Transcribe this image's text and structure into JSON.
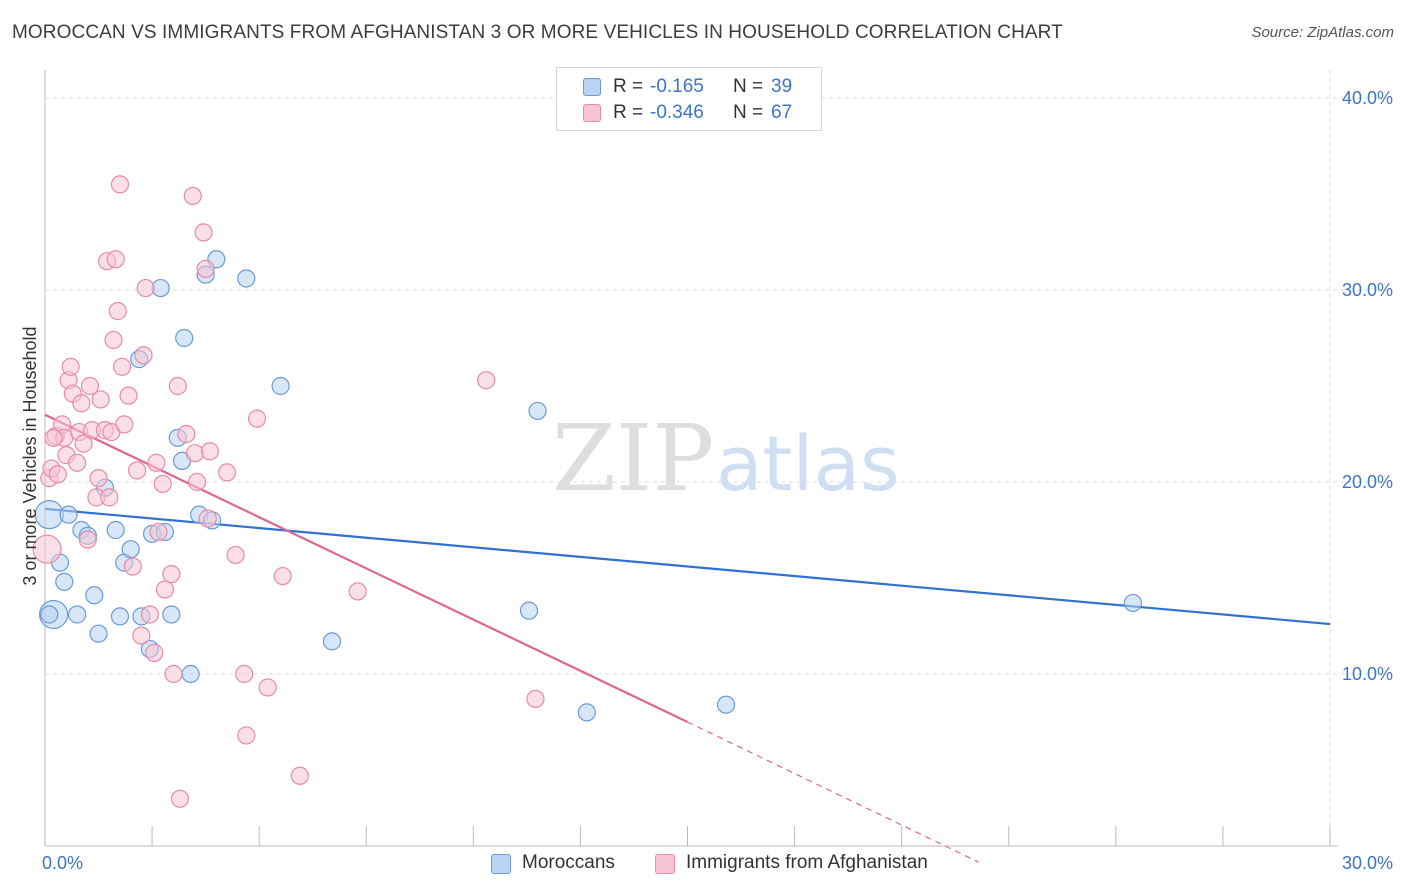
{
  "header": {
    "title": "MOROCCAN VS IMMIGRANTS FROM AFGHANISTAN 3 OR MORE VEHICLES IN HOUSEHOLD CORRELATION CHART",
    "source": "Source: ZipAtlas.com"
  },
  "watermark": {
    "zip": "ZIP",
    "atlas": "atlas"
  },
  "legend": {
    "moroccans": {
      "r_label": "R =",
      "r_value": "-0.165",
      "n_label": "N =",
      "n_value": "39"
    },
    "afghanistan": {
      "r_label": "R =",
      "r_value": "-0.346",
      "n_label": "N =",
      "n_value": "67"
    }
  },
  "bottom_legend": {
    "moroccans": "Moroccans",
    "afghanistan": "Immigrants from Afghanistan"
  },
  "colors": {
    "blue_fill": "#b8d3f3",
    "blue_stroke": "#6b9ad8",
    "blue_line": "#2f72d1",
    "pink_fill": "#f7c4d3",
    "pink_stroke": "#e88aa9",
    "pink_line": "#e0678f",
    "tick_text": "#3d74c9",
    "grid": "#dcdcdc"
  },
  "chart_data": {
    "type": "scatter",
    "title": "MOROCCAN VS IMMIGRANTS FROM AFGHANISTAN 3 OR MORE VEHICLES IN HOUSEHOLD CORRELATION CHART",
    "xlabel": "",
    "ylabel": "3 or more Vehicles in Household",
    "xlim": [
      0,
      30
    ],
    "ylim": [
      0,
      40
    ],
    "x_tick_labels": [
      {
        "value": 0,
        "label": "0.0%"
      },
      {
        "value": 30,
        "label": "30.0%"
      }
    ],
    "y_tick_labels": [
      {
        "value": 10,
        "label": "10.0%"
      },
      {
        "value": 20,
        "label": "20.0%"
      },
      {
        "value": 30,
        "label": "30.0%"
      },
      {
        "value": 40,
        "label": "40.0%"
      }
    ],
    "series": [
      {
        "name": "Moroccans",
        "color": "#6b9ad8",
        "trend": {
          "x0": 0,
          "y0": 18.6,
          "x1": 30,
          "y1": 12.6
        },
        "points": [
          {
            "x": 0.1,
            "y": 18.3,
            "big": true
          },
          {
            "x": 0.2,
            "y": 13.1,
            "big": true
          },
          {
            "x": 0.35,
            "y": 15.8
          },
          {
            "x": 0.45,
            "y": 14.8
          },
          {
            "x": 0.55,
            "y": 18.3
          },
          {
            "x": 0.75,
            "y": 13.1
          },
          {
            "x": 0.85,
            "y": 17.5
          },
          {
            "x": 1.0,
            "y": 17.2
          },
          {
            "x": 1.15,
            "y": 14.1
          },
          {
            "x": 1.25,
            "y": 12.1
          },
          {
            "x": 1.4,
            "y": 19.7
          },
          {
            "x": 1.65,
            "y": 17.5
          },
          {
            "x": 1.75,
            "y": 13.0
          },
          {
            "x": 1.85,
            "y": 15.8
          },
          {
            "x": 2.0,
            "y": 16.5
          },
          {
            "x": 2.2,
            "y": 26.4
          },
          {
            "x": 2.25,
            "y": 13.0
          },
          {
            "x": 2.45,
            "y": 11.3
          },
          {
            "x": 2.5,
            "y": 17.3
          },
          {
            "x": 2.7,
            "y": 30.1
          },
          {
            "x": 2.8,
            "y": 17.4
          },
          {
            "x": 2.95,
            "y": 13.1
          },
          {
            "x": 3.1,
            "y": 22.3
          },
          {
            "x": 3.2,
            "y": 21.1
          },
          {
            "x": 3.25,
            "y": 27.5
          },
          {
            "x": 3.4,
            "y": 10.0
          },
          {
            "x": 3.6,
            "y": 18.3
          },
          {
            "x": 3.75,
            "y": 30.8
          },
          {
            "x": 3.9,
            "y": 18.0
          },
          {
            "x": 4.0,
            "y": 31.6
          },
          {
            "x": 4.7,
            "y": 30.6
          },
          {
            "x": 5.5,
            "y": 25.0
          },
          {
            "x": 6.7,
            "y": 11.7
          },
          {
            "x": 11.3,
            "y": 13.3
          },
          {
            "x": 11.5,
            "y": 23.7
          },
          {
            "x": 12.65,
            "y": 8.0
          },
          {
            "x": 15.9,
            "y": 8.4
          },
          {
            "x": 25.4,
            "y": 13.7
          },
          {
            "x": 0.1,
            "y": 13.1
          }
        ]
      },
      {
        "name": "Immigrants from Afghanistan",
        "color": "#e88aa9",
        "trend": {
          "x0": 0,
          "y0": 23.5,
          "x1": 15.0,
          "y1": 7.5,
          "dash_x1": 21.8,
          "dash_y1": 0.2
        },
        "points": [
          {
            "x": 0.05,
            "y": 16.5,
            "big": true
          },
          {
            "x": 0.1,
            "y": 20.2
          },
          {
            "x": 0.15,
            "y": 20.7
          },
          {
            "x": 0.25,
            "y": 22.4
          },
          {
            "x": 0.3,
            "y": 20.4
          },
          {
            "x": 0.4,
            "y": 23.0
          },
          {
            "x": 0.45,
            "y": 22.3
          },
          {
            "x": 0.5,
            "y": 21.4
          },
          {
            "x": 0.55,
            "y": 25.3
          },
          {
            "x": 0.6,
            "y": 26.0
          },
          {
            "x": 0.65,
            "y": 24.6
          },
          {
            "x": 0.75,
            "y": 21.0
          },
          {
            "x": 0.8,
            "y": 22.6
          },
          {
            "x": 0.85,
            "y": 24.1
          },
          {
            "x": 0.9,
            "y": 22.0
          },
          {
            "x": 1.0,
            "y": 17.0
          },
          {
            "x": 1.05,
            "y": 25.0
          },
          {
            "x": 1.1,
            "y": 22.7
          },
          {
            "x": 1.2,
            "y": 19.2
          },
          {
            "x": 1.25,
            "y": 20.2
          },
          {
            "x": 1.3,
            "y": 24.3
          },
          {
            "x": 1.4,
            "y": 22.7
          },
          {
            "x": 1.45,
            "y": 31.5
          },
          {
            "x": 1.5,
            "y": 19.2
          },
          {
            "x": 1.55,
            "y": 22.6
          },
          {
            "x": 1.6,
            "y": 27.4
          },
          {
            "x": 1.65,
            "y": 31.6
          },
          {
            "x": 1.7,
            "y": 28.9
          },
          {
            "x": 1.75,
            "y": 35.5
          },
          {
            "x": 1.8,
            "y": 26.0
          },
          {
            "x": 1.85,
            "y": 23.0
          },
          {
            "x": 1.95,
            "y": 24.5
          },
          {
            "x": 2.05,
            "y": 15.6
          },
          {
            "x": 2.15,
            "y": 20.6
          },
          {
            "x": 2.25,
            "y": 12.0
          },
          {
            "x": 2.3,
            "y": 26.6
          },
          {
            "x": 2.35,
            "y": 30.1
          },
          {
            "x": 2.45,
            "y": 13.1
          },
          {
            "x": 2.55,
            "y": 11.1
          },
          {
            "x": 2.6,
            "y": 21.0
          },
          {
            "x": 2.65,
            "y": 17.4
          },
          {
            "x": 2.75,
            "y": 19.9
          },
          {
            "x": 2.8,
            "y": 14.4
          },
          {
            "x": 2.95,
            "y": 15.2
          },
          {
            "x": 3.0,
            "y": 10.0
          },
          {
            "x": 3.1,
            "y": 25.0
          },
          {
            "x": 3.15,
            "y": 3.5
          },
          {
            "x": 3.3,
            "y": 22.5
          },
          {
            "x": 3.45,
            "y": 34.9
          },
          {
            "x": 3.5,
            "y": 21.5
          },
          {
            "x": 3.55,
            "y": 20.0
          },
          {
            "x": 3.7,
            "y": 33.0
          },
          {
            "x": 3.75,
            "y": 31.1
          },
          {
            "x": 3.8,
            "y": 18.1
          },
          {
            "x": 3.85,
            "y": 21.6
          },
          {
            "x": 4.25,
            "y": 20.5
          },
          {
            "x": 4.45,
            "y": 16.2
          },
          {
            "x": 4.65,
            "y": 10.0
          },
          {
            "x": 4.7,
            "y": 6.8
          },
          {
            "x": 4.95,
            "y": 23.3
          },
          {
            "x": 5.2,
            "y": 9.3
          },
          {
            "x": 5.55,
            "y": 15.1
          },
          {
            "x": 5.95,
            "y": 4.7
          },
          {
            "x": 7.3,
            "y": 14.3
          },
          {
            "x": 10.3,
            "y": 25.3
          },
          {
            "x": 11.45,
            "y": 8.7
          },
          {
            "x": 0.2,
            "y": 22.3
          }
        ]
      }
    ]
  }
}
